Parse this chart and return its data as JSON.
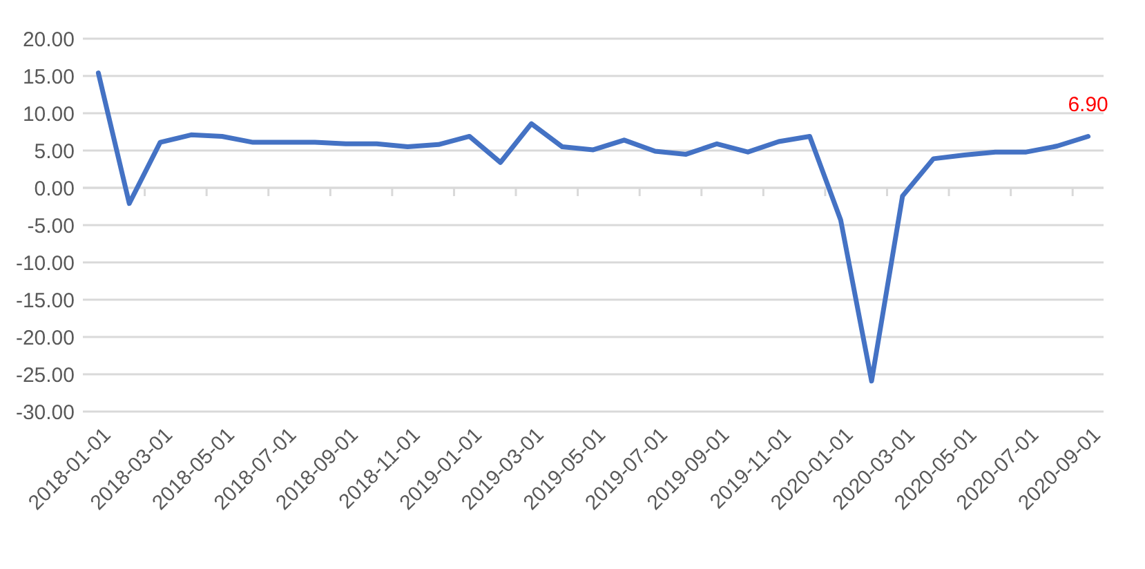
{
  "chart_data": {
    "type": "line",
    "categories": [
      "2018-01-01",
      null,
      "2018-03-01",
      null,
      "2018-05-01",
      null,
      "2018-07-01",
      null,
      "2018-09-01",
      null,
      "2018-11-01",
      null,
      "2019-01-01",
      null,
      "2019-03-01",
      null,
      "2019-05-01",
      null,
      "2019-07-01",
      null,
      "2019-09-01",
      null,
      "2019-11-01",
      null,
      "2020-01-01",
      null,
      "2020-03-01",
      null,
      "2020-05-01",
      null,
      "2020-07-01",
      null,
      "2020-09-01"
    ],
    "series": [
      {
        "color": "#4472c4",
        "values": [
          15.4,
          -2.1,
          6.1,
          7.1,
          6.9,
          6.1,
          6.1,
          6.1,
          5.9,
          5.9,
          5.5,
          5.8,
          6.9,
          3.4,
          8.6,
          5.5,
          5.1,
          6.4,
          4.9,
          4.5,
          5.9,
          4.8,
          6.2,
          6.9,
          -4.3,
          -25.9,
          -1.1,
          3.9,
          4.4,
          4.8,
          4.8,
          5.6,
          6.9
        ],
        "value_labels": [
          null,
          null,
          null,
          null,
          null,
          null,
          null,
          null,
          null,
          null,
          null,
          null,
          null,
          null,
          null,
          null,
          null,
          null,
          null,
          null,
          null,
          null,
          null,
          null,
          null,
          null,
          null,
          null,
          null,
          null,
          null,
          null,
          "6.90"
        ]
      }
    ],
    "ylim": [
      -30,
      20
    ],
    "yticks": [
      {
        "value": 20,
        "label": "20.00"
      },
      {
        "value": 15,
        "label": "15.00"
      },
      {
        "value": 10,
        "label": "10.00"
      },
      {
        "value": 5,
        "label": "5.00"
      },
      {
        "value": 0,
        "label": "0.00"
      },
      {
        "value": -5,
        "label": "-5.00"
      },
      {
        "value": -10,
        "label": "-10.00"
      },
      {
        "value": -15,
        "label": "-15.00"
      },
      {
        "value": -20,
        "label": "-20.00"
      },
      {
        "value": -25,
        "label": "-25.00"
      },
      {
        "value": -30,
        "label": "-30.00"
      }
    ],
    "grid": "y",
    "marker": "none",
    "line_style": "solid"
  }
}
